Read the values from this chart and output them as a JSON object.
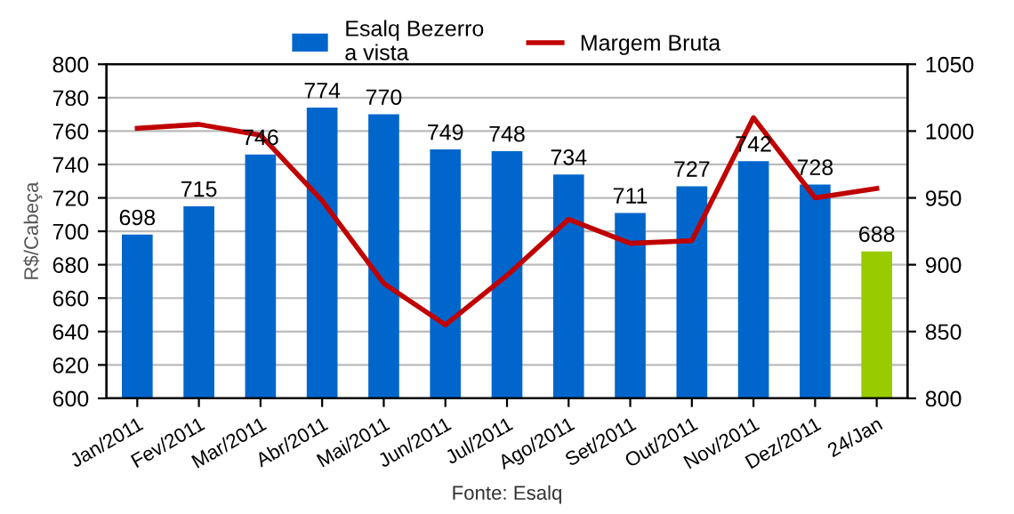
{
  "chart_data": {
    "type": "bar",
    "ylabel": "R$/Cabeça",
    "categories": [
      "Jan/2011",
      "Fev/2011",
      "Mar/2011",
      "Abr/2011",
      "Mai/2011",
      "Jun/2011",
      "Jul/2011",
      "Ago/2011",
      "Set/2011",
      "Out/2011",
      "Nov/2011",
      "Dez/2011",
      "24/Jan"
    ],
    "series": [
      {
        "name": "Esalq Bezerro\na vista",
        "color": "#0066cc",
        "colors": [
          "#0066cc",
          "#0066cc",
          "#0066cc",
          "#0066cc",
          "#0066cc",
          "#0066cc",
          "#0066cc",
          "#0066cc",
          "#0066cc",
          "#0066cc",
          "#0066cc",
          "#0066cc",
          "#99cc00"
        ],
        "values": [
          698,
          715,
          746,
          774,
          770,
          749,
          748,
          734,
          711,
          727,
          742,
          728,
          688
        ],
        "value_labels": [
          "698",
          "715",
          "746",
          "774",
          "770",
          "749",
          "748",
          "734",
          "711",
          "727",
          "742",
          "728",
          "688"
        ]
      },
      {
        "name": "Margem Bruta",
        "type": "line",
        "axis": "y2",
        "color": "#c00000",
        "values": [
          1002,
          1005,
          997,
          948,
          886,
          855,
          892,
          934,
          916,
          918,
          1010,
          950,
          957
        ]
      }
    ],
    "ylim": [
      600,
      800
    ],
    "yticks": [
      600,
      620,
      640,
      660,
      680,
      700,
      720,
      740,
      760,
      780,
      800
    ],
    "y2lim": [
      800,
      1050
    ],
    "y2ticks": [
      800,
      850,
      900,
      950,
      1000,
      1050
    ],
    "grid": "y",
    "legend": "top",
    "marker": "none",
    "line_style": "solid",
    "annotations": [
      "Fonte: Esalq"
    ]
  }
}
